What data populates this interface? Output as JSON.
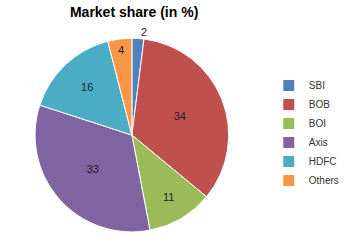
{
  "chart_data": {
    "type": "pie",
    "title": "Market share (in %)",
    "categories": [
      "SBI",
      "BOB",
      "BOI",
      "Axis",
      "HDFC",
      "Others"
    ],
    "values": [
      2,
      34,
      11,
      33,
      16,
      4
    ],
    "colors": [
      "#4f81bd",
      "#c0504d",
      "#9bbb59",
      "#8064a2",
      "#4bacc6",
      "#f79646"
    ],
    "data_labels": true,
    "legend": "right"
  }
}
